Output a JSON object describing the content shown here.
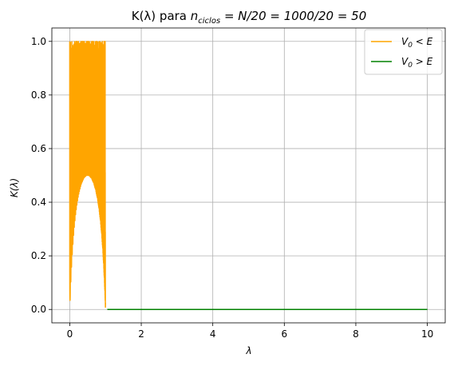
{
  "chart_data": {
    "type": "line",
    "title": "K(λ) para n_ciclos = N/20 = 1000/20 = 50",
    "title_parts": {
      "prefix": "K(λ) para ",
      "n": "n",
      "sub": "ciclos",
      "suffix": " = N/20 = 1000/20 = 50"
    },
    "xlabel": "λ",
    "ylabel": "K(λ)",
    "xlim": [
      -0.5,
      10.5
    ],
    "ylim": [
      -0.05,
      1.05
    ],
    "xticks": [
      0,
      2,
      4,
      6,
      8,
      10
    ],
    "yticks": [
      0.0,
      0.2,
      0.4,
      0.6,
      0.8,
      1.0
    ],
    "xtick_labels": [
      "0",
      "2",
      "4",
      "6",
      "8",
      "10"
    ],
    "ytick_labels": [
      "0.0",
      "0.2",
      "0.4",
      "0.6",
      "0.8",
      "1.0"
    ],
    "grid": true,
    "legend_position": "top-right",
    "series": [
      {
        "name": "V₀ < E",
        "label_parts": {
          "v": "V",
          "sub": "0",
          "rel": " < E"
        },
        "color": "#ffa500",
        "x_range": [
          0,
          1
        ],
        "points": 1000,
        "function": "K(λ) = 4λ(1−λ) / (4λ(1−λ) + sin²(2π·50·√(1−λ)))",
        "n_ciclos": 50
      },
      {
        "name": "V₀ > E",
        "label_parts": {
          "v": "V",
          "sub": "0",
          "rel": " > E"
        },
        "color": "#008000",
        "x": [
          1.05,
          10
        ],
        "y": [
          0,
          0
        ]
      }
    ]
  }
}
